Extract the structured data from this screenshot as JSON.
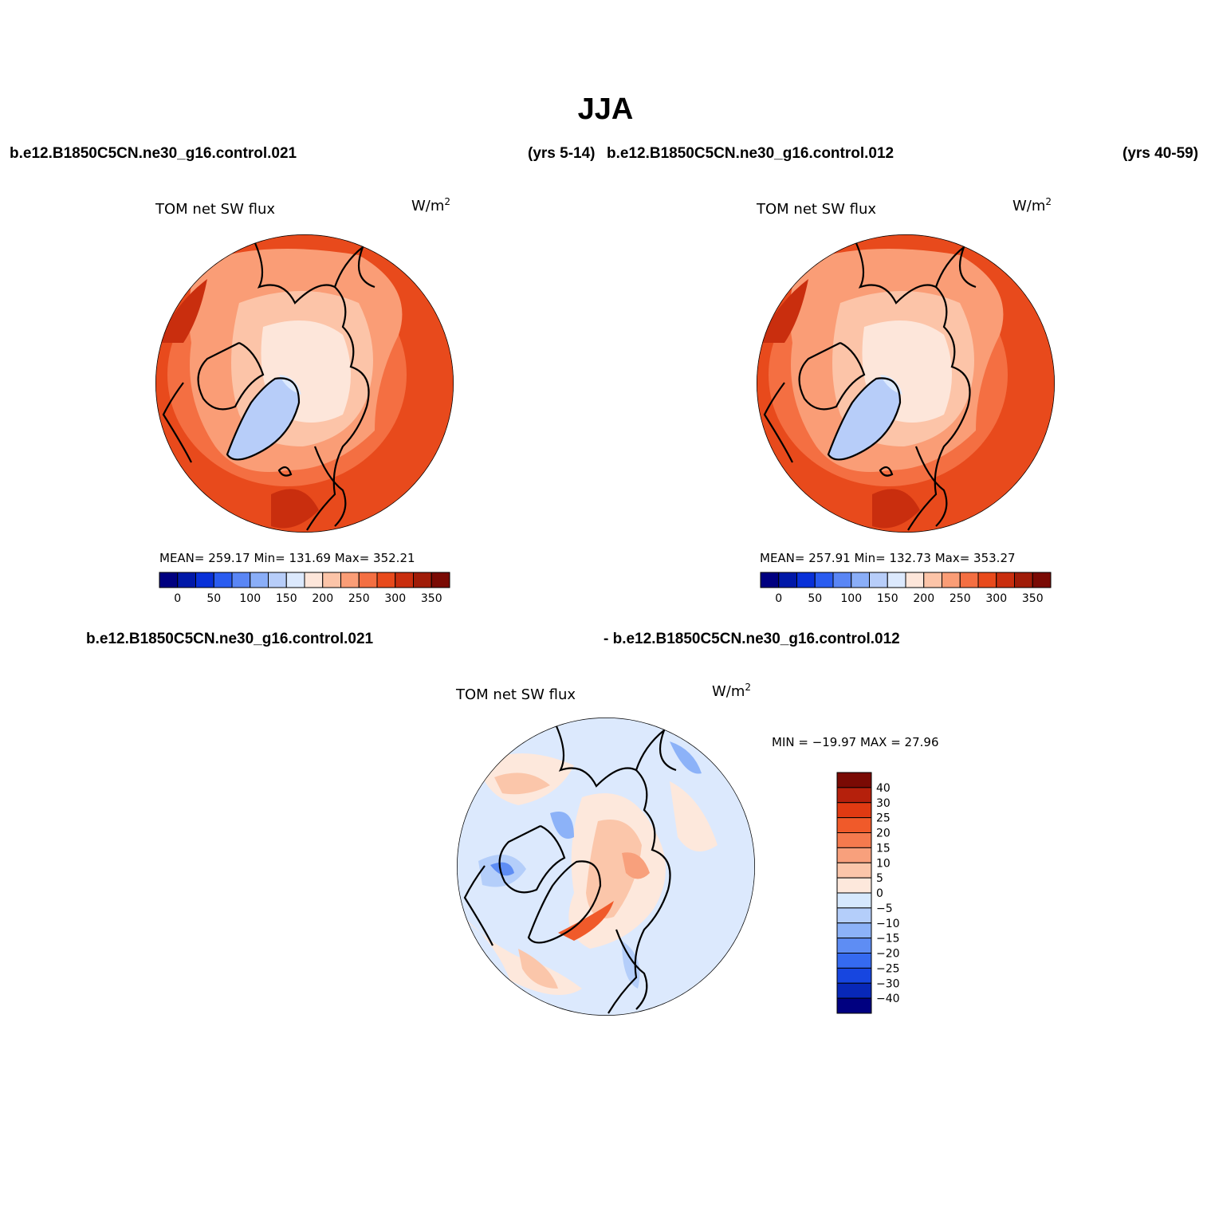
{
  "figure": {
    "title": "JJA",
    "top_left_case": "b.e12.B1850C5CN.ne30_g16.control.021",
    "top_left_years": "(yrs 5-14)",
    "top_right_case": "b.e12.B1850C5CN.ne30_g16.control.012",
    "top_right_years": "(yrs 40-59)",
    "diff_case_a": "b.e12.B1850C5CN.ne30_g16.control.021",
    "diff_case_b": "- b.e12.B1850C5CN.ne30_g16.control.012"
  },
  "panels": {
    "left": {
      "title": "TOM net SW flux",
      "units": "W/m",
      "units_exp": "2",
      "stats": "MEAN= 259.17   Min= 131.69   Max= 352.21"
    },
    "right": {
      "title": "TOM net SW flux",
      "units": "W/m",
      "units_exp": "2",
      "stats": "MEAN= 257.91   Min= 132.73   Max= 353.27"
    },
    "diff": {
      "title": "TOM net SW flux",
      "units": "W/m",
      "units_exp": "2",
      "stats": "MIN = −19.97 MAX =  27.96"
    }
  },
  "colorbars": {
    "abs_colors": [
      "#000080",
      "#0018a8",
      "#0830d8",
      "#2a5cf0",
      "#5a86f5",
      "#8aaef8",
      "#b7cdf9",
      "#dce9fd",
      "#fde6da",
      "#fcc4a8",
      "#fa9d76",
      "#f46f42",
      "#e84a1c",
      "#c92e0e",
      "#a01c08",
      "#7a0a04"
    ],
    "abs_labels": [
      "0",
      "50",
      "100",
      "150",
      "200",
      "250",
      "300",
      "350"
    ],
    "diff_colors": [
      "#7a0a04",
      "#b5200c",
      "#e03a12",
      "#f05a2a",
      "#f57a4e",
      "#f8a07c",
      "#fbc6aa",
      "#fde8dc",
      "#d6e8fd",
      "#b4cefa",
      "#8cb2f8",
      "#5e8df4",
      "#356af0",
      "#1746e0",
      "#0828b8",
      "#000080"
    ],
    "diff_labels": [
      "40",
      "30",
      "25",
      "20",
      "15",
      "10",
      "5",
      "0",
      "−5",
      "−10",
      "−15",
      "−20",
      "−25",
      "−30",
      "−40"
    ]
  },
  "map_colors": {
    "outer": "#e84a1c",
    "mid": "#f46f42",
    "light": "#fa9d76",
    "pale": "#fcc4a8",
    "palest": "#fde6da",
    "greenland": "#b7cdf9",
    "greenland_light": "#dce9fd",
    "dark": "#c92e0e",
    "diff_bg": "#dce9fd",
    "diff_warm1": "#fde8dc",
    "diff_warm2": "#fbc6aa",
    "diff_warm3": "#f8a07c",
    "diff_warm4": "#f05a2a",
    "diff_cool1": "#b4cefa",
    "diff_cool2": "#8cb2f8",
    "diff_cool3": "#5e8df4"
  }
}
